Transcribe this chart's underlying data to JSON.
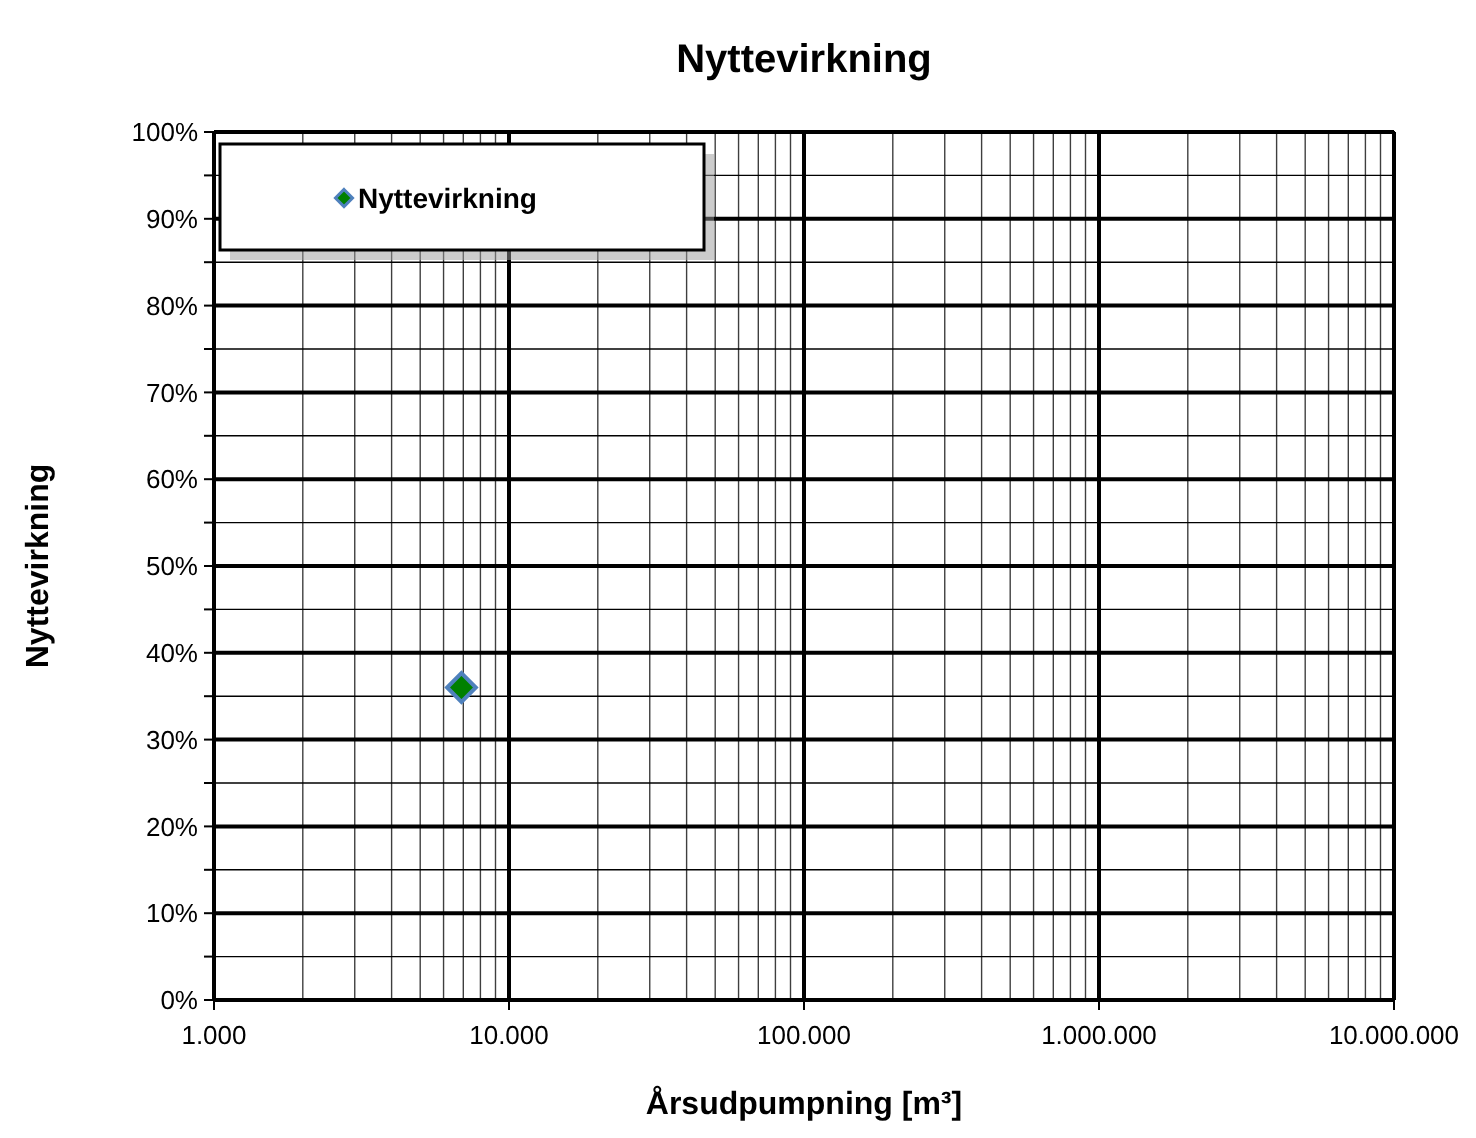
{
  "chart_data": {
    "type": "scatter",
    "title": "Nyttevirkning",
    "xlabel": "Årsudpumpning [m³]",
    "ylabel": "Nyttevirkning",
    "log": "x",
    "grid": true,
    "legend": "top left",
    "marker": "diamond",
    "xlim": [
      1000,
      10000000
    ],
    "xticks": [
      {
        "value": 1000,
        "label": "1.000"
      },
      {
        "value": 2000,
        "label": null
      },
      {
        "value": 3000,
        "label": null
      },
      {
        "value": 4000,
        "label": null
      },
      {
        "value": 5000,
        "label": null
      },
      {
        "value": 6000,
        "label": null
      },
      {
        "value": 7000,
        "label": null
      },
      {
        "value": 8000,
        "label": null
      },
      {
        "value": 9000,
        "label": null
      },
      {
        "value": 10000,
        "label": "10.000"
      },
      {
        "value": 20000,
        "label": null
      },
      {
        "value": 30000,
        "label": null
      },
      {
        "value": 40000,
        "label": null
      },
      {
        "value": 50000,
        "label": null
      },
      {
        "value": 60000,
        "label": null
      },
      {
        "value": 70000,
        "label": null
      },
      {
        "value": 80000,
        "label": null
      },
      {
        "value": 90000,
        "label": null
      },
      {
        "value": 100000,
        "label": "100.000"
      },
      {
        "value": 200000,
        "label": null
      },
      {
        "value": 300000,
        "label": null
      },
      {
        "value": 400000,
        "label": null
      },
      {
        "value": 500000,
        "label": null
      },
      {
        "value": 600000,
        "label": null
      },
      {
        "value": 700000,
        "label": null
      },
      {
        "value": 800000,
        "label": null
      },
      {
        "value": 900000,
        "label": null
      },
      {
        "value": 1000000,
        "label": "1.000.000"
      },
      {
        "value": 2000000,
        "label": null
      },
      {
        "value": 3000000,
        "label": null
      },
      {
        "value": 4000000,
        "label": null
      },
      {
        "value": 5000000,
        "label": null
      },
      {
        "value": 6000000,
        "label": null
      },
      {
        "value": 7000000,
        "label": null
      },
      {
        "value": 8000000,
        "label": null
      },
      {
        "value": 9000000,
        "label": null
      },
      {
        "value": 10000000,
        "label": "10.000.000"
      }
    ],
    "ylim": [
      0,
      100
    ],
    "yticks": [
      {
        "value": 0,
        "label": "0%"
      },
      {
        "value": 5,
        "label": null
      },
      {
        "value": 10,
        "label": "10%"
      },
      {
        "value": 15,
        "label": null
      },
      {
        "value": 20,
        "label": "20%"
      },
      {
        "value": 25,
        "label": null
      },
      {
        "value": 30,
        "label": "30%"
      },
      {
        "value": 35,
        "label": null
      },
      {
        "value": 40,
        "label": "40%"
      },
      {
        "value": 45,
        "label": null
      },
      {
        "value": 50,
        "label": "50%"
      },
      {
        "value": 55,
        "label": null
      },
      {
        "value": 60,
        "label": "60%"
      },
      {
        "value": 65,
        "label": null
      },
      {
        "value": 70,
        "label": "70%"
      },
      {
        "value": 75,
        "label": null
      },
      {
        "value": 80,
        "label": "80%"
      },
      {
        "value": 85,
        "label": null
      },
      {
        "value": 90,
        "label": "90%"
      },
      {
        "value": 95,
        "label": null
      },
      {
        "value": 100,
        "label": "100%"
      }
    ],
    "series": [
      {
        "name": "Nyttevirkning",
        "color": "#008000",
        "x": [
          6900
        ],
        "values": [
          36
        ]
      }
    ]
  }
}
